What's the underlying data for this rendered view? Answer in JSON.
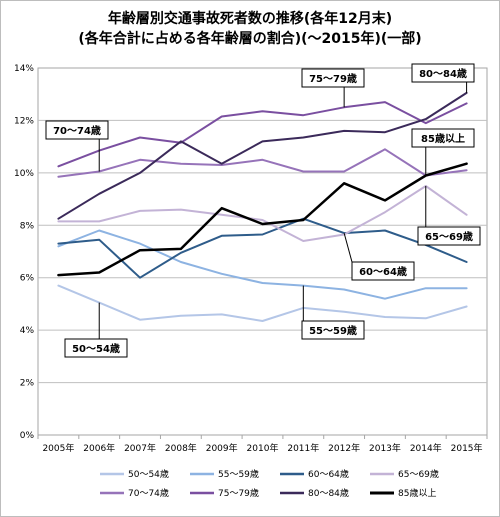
{
  "chart_data": {
    "type": "line",
    "title": "年齢層別交通事故死者数の推移(各年12月末)",
    "subtitle": "(各年合計に占める各年齢層の割合)(〜2015年)(一部)",
    "categories": [
      "2005年",
      "2006年",
      "2007年",
      "2008年",
      "2009年",
      "2010年",
      "2011年",
      "2012年",
      "2013年",
      "2014年",
      "2015年"
    ],
    "yticks": [
      "0%",
      "2%",
      "4%",
      "6%",
      "8%",
      "10%",
      "12%",
      "14%"
    ],
    "ylim": [
      0,
      14
    ],
    "grid": true,
    "legend_position": "bottom",
    "series": [
      {
        "name": "50〜54歳",
        "color": "#b4c6e7",
        "width": 2,
        "values": [
          5.7,
          5.05,
          4.4,
          4.55,
          4.6,
          4.35,
          4.85,
          4.7,
          4.5,
          4.45,
          4.9
        ]
      },
      {
        "name": "55〜59歳",
        "color": "#8db3e2",
        "width": 2,
        "values": [
          7.2,
          7.8,
          7.3,
          6.6,
          6.15,
          5.8,
          5.7,
          5.55,
          5.2,
          5.6,
          5.6
        ]
      },
      {
        "name": "60〜64歳",
        "color": "#2e5c8a",
        "width": 2,
        "values": [
          7.3,
          7.45,
          6.0,
          6.95,
          7.6,
          7.65,
          8.25,
          7.7,
          7.8,
          7.25,
          6.6
        ]
      },
      {
        "name": "65〜69歳",
        "color": "#c3b3d6",
        "width": 2,
        "values": [
          8.15,
          8.15,
          8.55,
          8.6,
          8.4,
          8.2,
          7.4,
          7.65,
          8.5,
          9.5,
          8.4
        ]
      },
      {
        "name": "70〜74歳",
        "color": "#9673b9",
        "width": 2,
        "values": [
          9.85,
          10.05,
          10.5,
          10.35,
          10.3,
          10.5,
          10.05,
          10.05,
          10.9,
          9.9,
          10.1
        ]
      },
      {
        "name": "75〜79歳",
        "color": "#7a4fa0",
        "width": 2,
        "values": [
          10.25,
          10.85,
          11.35,
          11.15,
          12.15,
          12.35,
          12.2,
          12.5,
          12.7,
          11.9,
          12.65
        ]
      },
      {
        "name": "80〜84歳",
        "color": "#3b2a5a",
        "width": 2,
        "values": [
          8.25,
          9.2,
          10.0,
          11.2,
          10.35,
          11.2,
          11.35,
          11.6,
          11.55,
          12.05,
          13.05
        ]
      },
      {
        "name": "85歳以上",
        "color": "#000000",
        "width": 2.5,
        "values": [
          6.1,
          6.2,
          7.05,
          7.1,
          8.65,
          8.05,
          8.2,
          9.6,
          8.95,
          9.9,
          10.35
        ]
      }
    ],
    "annotations": [
      "50〜54歳",
      "55〜59歳",
      "60〜64歳",
      "65〜69歳",
      "70〜74歳",
      "75〜79歳",
      "80〜84歳",
      "85歳以上"
    ]
  }
}
